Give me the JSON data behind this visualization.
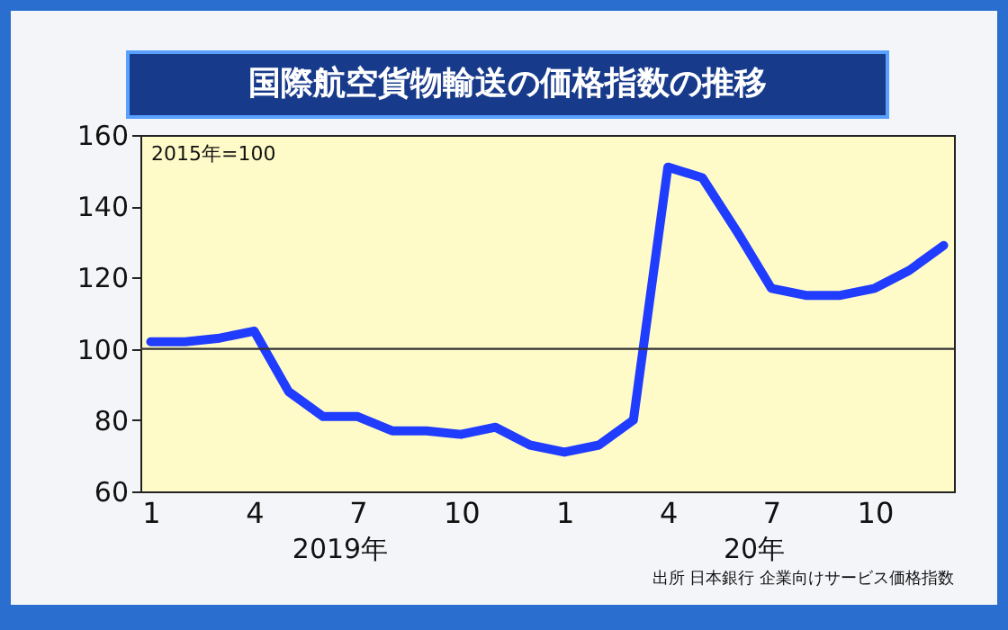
{
  "chart_data": {
    "type": "line",
    "title": "国際航空貨物輸送の価格指数の推移",
    "categories": [
      "1",
      null,
      null,
      "4",
      null,
      null,
      "7",
      null,
      null,
      "10",
      null,
      null,
      "1",
      null,
      null,
      "4",
      null,
      null,
      "7",
      null,
      null,
      "10",
      null,
      null
    ],
    "series": [
      {
        "color": "#1f3cff",
        "values": [
          102,
          102,
          103,
          105,
          88,
          81,
          81,
          77,
          77,
          76,
          78,
          73,
          71,
          73,
          80,
          151,
          148,
          133,
          117,
          115,
          115,
          117,
          122,
          129
        ]
      }
    ],
    "ylim": [
      60,
      160
    ],
    "yticks": [
      60,
      80,
      100,
      120,
      140,
      160
    ],
    "grid": false,
    "marker": "none",
    "line_style": "solid",
    "ref_lines": [
      {
        "axis": "y",
        "value": 100,
        "color": "#333333"
      }
    ],
    "annotations": [
      "2015年=100",
      "2019年",
      "20年",
      "出所 日本銀行 企業向けサービス価格指数"
    ]
  }
}
